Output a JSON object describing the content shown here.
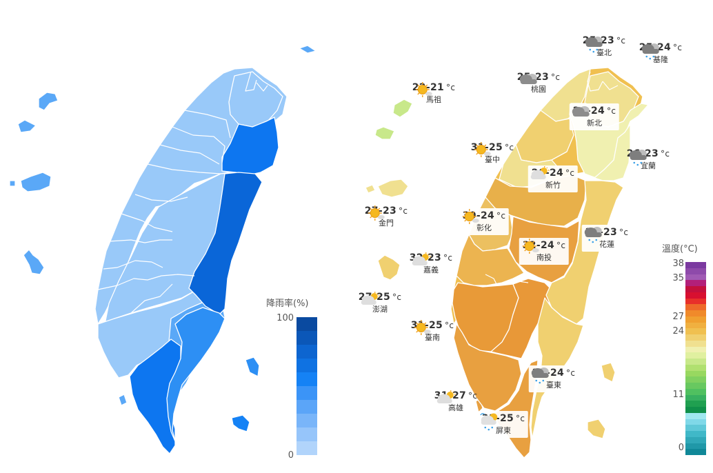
{
  "rain_legend": {
    "title": "降雨率(%)",
    "max_label": "100",
    "min_label": "0",
    "colors": [
      "#0a4aa0",
      "#0b57b8",
      "#0d65d0",
      "#0f72e2",
      "#1582f5",
      "#3b94f7",
      "#5ba5f8",
      "#79b5f9",
      "#96c5fa",
      "#b1d4fb"
    ]
  },
  "rain_regions_color": {
    "light": "#99c9f9",
    "mid": "#5aa8f7",
    "strong": "#2d8ff4",
    "deep": "#0d76f0",
    "deepest": "#0a66d8"
  },
  "temp_legend": {
    "title": "溫度(°C)",
    "ticks": [
      "38",
      "35",
      "27",
      "24",
      "11",
      "0"
    ],
    "colors": [
      "#7b3aa0",
      "#8e4aaa",
      "#a05ab4",
      "#b2207a",
      "#c4103c",
      "#d81030",
      "#e8302a",
      "#ee6a2a",
      "#f08a2a",
      "#f0a030",
      "#f0b040",
      "#f0c050",
      "#f0d070",
      "#f0e090",
      "#f0f0b0",
      "#e0f0a0",
      "#c8e88a",
      "#b0e070",
      "#98d860",
      "#80d060",
      "#68c860",
      "#50c060",
      "#38b060",
      "#20a050",
      "#10904a",
      "#a0e8f0",
      "#80d8e8",
      "#60c8d8",
      "#40b8c8",
      "#30a8b8",
      "#2098a8",
      "#108898"
    ]
  },
  "cities": [
    {
      "id": "taipei",
      "name": "臺北",
      "temp": "25-23",
      "unit": "°c",
      "icon": "rain-icon",
      "card": false
    },
    {
      "id": "keelung",
      "name": "基隆",
      "temp": "25-24",
      "unit": "°c",
      "icon": "rain-icon",
      "card": false
    },
    {
      "id": "taoyuan",
      "name": "桃園",
      "temp": "25-23",
      "unit": "°c",
      "icon": "cloudy-icon",
      "card": false
    },
    {
      "id": "newtaipei",
      "name": "新北",
      "temp": "26-24",
      "unit": "°c",
      "icon": "cloudy-icon",
      "card": true
    },
    {
      "id": "matsu",
      "name": "馬祖",
      "temp": "22-21",
      "unit": "°c",
      "icon": "sunny-icon",
      "card": false
    },
    {
      "id": "taichung",
      "name": "臺中",
      "temp": "31-25",
      "unit": "°c",
      "icon": "sunny-icon",
      "card": false
    },
    {
      "id": "yilan",
      "name": "宜蘭",
      "temp": "26-23",
      "unit": "°c",
      "icon": "rain-icon",
      "card": false
    },
    {
      "id": "hsinchu",
      "name": "新竹",
      "temp": "26-24",
      "unit": "°c",
      "icon": "partly-cloudy-icon",
      "card": true
    },
    {
      "id": "kinmen",
      "name": "金門",
      "temp": "27-23",
      "unit": "°c",
      "icon": "sunny-icon",
      "card": false
    },
    {
      "id": "changhua",
      "name": "彰化",
      "temp": "30-24",
      "unit": "°c",
      "icon": "sunny-icon",
      "card": true
    },
    {
      "id": "hualien",
      "name": "花蓮",
      "temp": "28-23",
      "unit": "°c",
      "icon": "rain-icon",
      "card": true
    },
    {
      "id": "chiayi",
      "name": "嘉義",
      "temp": "32-23",
      "unit": "°c",
      "icon": "partly-cloudy-icon",
      "card": false
    },
    {
      "id": "nantou",
      "name": "南投",
      "temp": "32-24",
      "unit": "°c",
      "icon": "sunny-icon",
      "card": true
    },
    {
      "id": "penghu",
      "name": "澎湖",
      "temp": "27-25",
      "unit": "°c",
      "icon": "partly-cloudy-icon",
      "card": false
    },
    {
      "id": "tainan",
      "name": "臺南",
      "temp": "31-25",
      "unit": "°c",
      "icon": "sunny-icon",
      "card": false
    },
    {
      "id": "taitung",
      "name": "臺東",
      "temp": "29-24",
      "unit": "°c",
      "icon": "rain-icon",
      "card": true
    },
    {
      "id": "kaohsiung",
      "name": "高雄",
      "temp": "31-27",
      "unit": "°c",
      "icon": "partly-cloudy-icon",
      "card": false
    },
    {
      "id": "pingtung",
      "name": "屏東",
      "temp": "31-25",
      "unit": "°c",
      "icon": "sun-rain-icon",
      "card": true
    }
  ]
}
